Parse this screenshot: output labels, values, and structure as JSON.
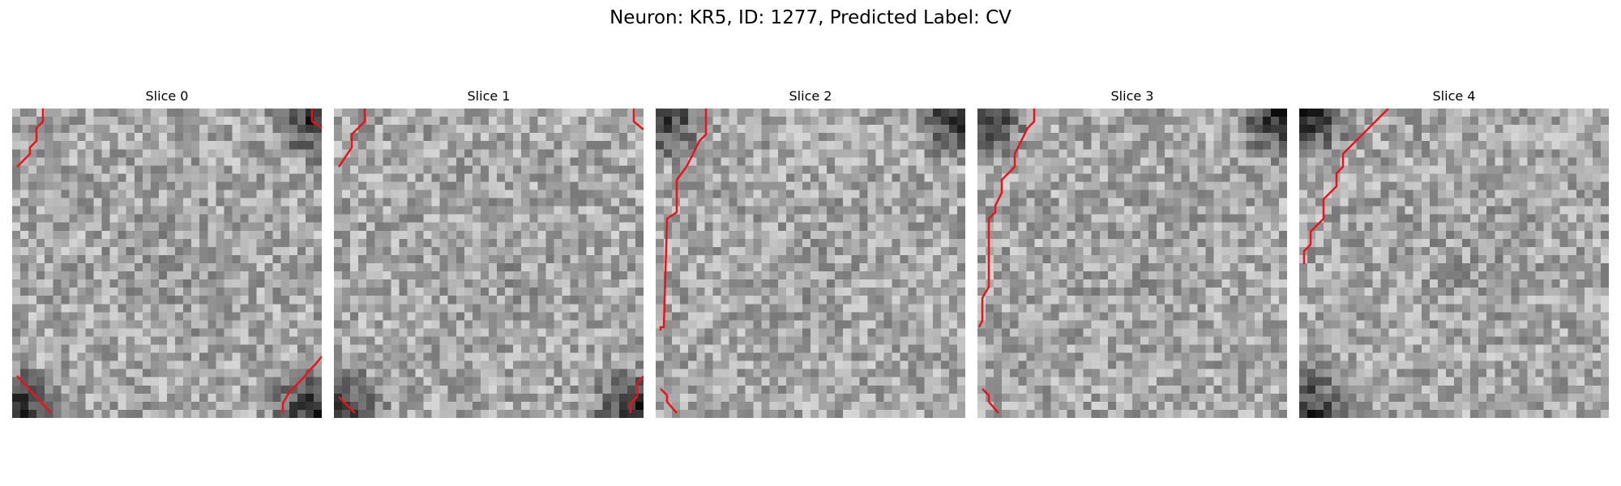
{
  "figure": {
    "title": "Neuron: KR5, ID: 1277, Predicted Label: CV"
  },
  "slices": [
    {
      "label": "Slice 0",
      "dark_corners": [
        "top-right",
        "bottom-left",
        "bottom-right"
      ],
      "trace_color": "#e8141a"
    },
    {
      "label": "Slice 1",
      "dark_corners": [
        "bottom-left",
        "bottom-right"
      ],
      "trace_color": "#e8141a"
    },
    {
      "label": "Slice 2",
      "dark_corners": [
        "top-left",
        "top-right"
      ],
      "trace_color": "#e8141a"
    },
    {
      "label": "Slice 3",
      "dark_corners": [
        "top-left",
        "top-right"
      ],
      "trace_color": "#e8141a"
    },
    {
      "label": "Slice 4",
      "dark_corners": [
        "top-left",
        "bottom-left"
      ],
      "trace_color": "#e8141a"
    }
  ]
}
